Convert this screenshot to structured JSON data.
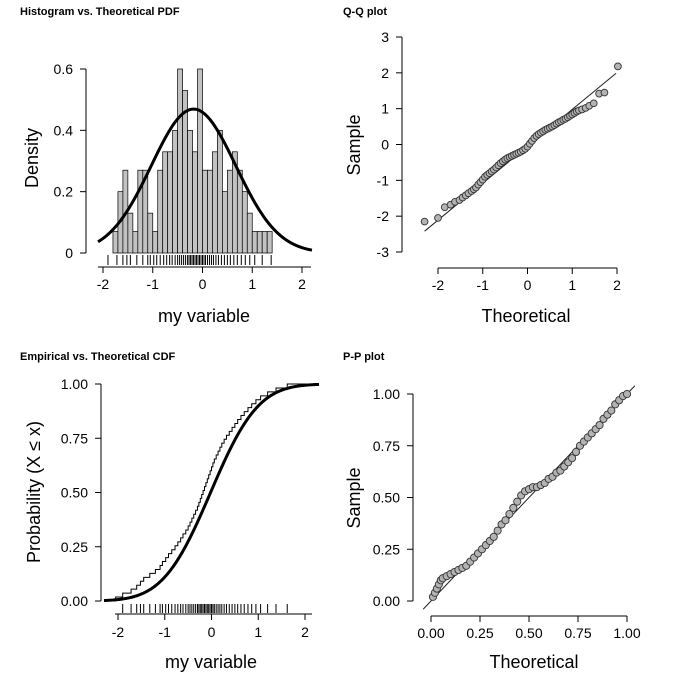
{
  "chart_data": [
    {
      "type": "bar",
      "title": "Histogram vs. Theoretical PDF",
      "xlabel": "my variable",
      "ylabel": "Density",
      "xlim": [
        -2.2,
        2.2
      ],
      "ylim": [
        0,
        0.62
      ],
      "xticks": [
        "-2",
        "-1",
        "0",
        "1",
        "2"
      ],
      "yticks": [
        "0",
        "0.2",
        "0.4",
        "0.6"
      ],
      "bin_width": 0.1,
      "bin_starts": [
        -1.8,
        -1.7,
        -1.6,
        -1.5,
        -1.4,
        -1.3,
        -1.2,
        -1.1,
        -1.0,
        -0.9,
        -0.8,
        -0.7,
        -0.6,
        -0.5,
        -0.4,
        -0.3,
        -0.2,
        -0.1,
        0.0,
        0.1,
        0.2,
        0.3,
        0.4,
        0.5,
        0.6,
        0.7,
        0.8,
        0.9,
        1.0,
        1.1,
        1.2,
        1.3
      ],
      "densities": [
        0.07,
        0.2,
        0.27,
        0.13,
        0.07,
        0.27,
        0.27,
        0.13,
        0.07,
        0.27,
        0.33,
        0.33,
        0.4,
        0.6,
        0.53,
        0.4,
        0.33,
        0.6,
        0.27,
        0.27,
        0.33,
        0.4,
        0.2,
        0.27,
        0.33,
        0.27,
        0.2,
        0.13,
        0.07,
        0.07,
        0.07,
        0.07
      ],
      "pdf_curve": {
        "mean": -0.18,
        "sd": 0.85
      },
      "rug": [
        -1.9,
        -1.72,
        -1.6,
        -1.52,
        -1.45,
        -1.32,
        -1.2,
        -1.1,
        -1.05,
        -0.98,
        -0.92,
        -0.85,
        -0.78,
        -0.72,
        -0.66,
        -0.61,
        -0.55,
        -0.5,
        -0.46,
        -0.42,
        -0.38,
        -0.34,
        -0.3,
        -0.27,
        -0.24,
        -0.21,
        -0.18,
        -0.15,
        -0.12,
        -0.09,
        -0.06,
        -0.03,
        0.0,
        0.03,
        0.06,
        0.1,
        0.14,
        0.18,
        0.22,
        0.27,
        0.32,
        0.38,
        0.44,
        0.5,
        0.56,
        0.63,
        0.7,
        0.78,
        0.86,
        0.95,
        1.05,
        1.2,
        1.38
      ]
    },
    {
      "type": "scatter",
      "title": "Q-Q plot",
      "xlabel": "Theoretical",
      "ylabel": "Sample",
      "xlim": [
        -2.5,
        2.5
      ],
      "ylim": [
        -3,
        3
      ],
      "xticks": [
        "-2",
        "-1",
        "0",
        "1",
        "2"
      ],
      "yticks": [
        "3",
        "2",
        "1",
        "0",
        "-1",
        "-2",
        "-3"
      ],
      "reference_line": {
        "intercept": -0.05,
        "slope": 1.03
      },
      "points": [
        [
          -2.3,
          -2.15
        ],
        [
          -2.0,
          -2.05
        ],
        [
          -1.85,
          -1.75
        ],
        [
          -1.72,
          -1.68
        ],
        [
          -1.62,
          -1.6
        ],
        [
          -1.52,
          -1.55
        ],
        [
          -1.45,
          -1.48
        ],
        [
          -1.38,
          -1.42
        ],
        [
          -1.32,
          -1.36
        ],
        [
          -1.25,
          -1.3
        ],
        [
          -1.2,
          -1.25
        ],
        [
          -1.15,
          -1.2
        ],
        [
          -1.1,
          -1.12
        ],
        [
          -1.05,
          -1.05
        ],
        [
          -1.0,
          -0.98
        ],
        [
          -0.95,
          -0.9
        ],
        [
          -0.9,
          -0.85
        ],
        [
          -0.85,
          -0.8
        ],
        [
          -0.8,
          -0.75
        ],
        [
          -0.75,
          -0.7
        ],
        [
          -0.7,
          -0.64
        ],
        [
          -0.65,
          -0.58
        ],
        [
          -0.6,
          -0.52
        ],
        [
          -0.55,
          -0.47
        ],
        [
          -0.5,
          -0.42
        ],
        [
          -0.45,
          -0.38
        ],
        [
          -0.4,
          -0.35
        ],
        [
          -0.35,
          -0.32
        ],
        [
          -0.3,
          -0.29
        ],
        [
          -0.25,
          -0.26
        ],
        [
          -0.2,
          -0.23
        ],
        [
          -0.15,
          -0.2
        ],
        [
          -0.1,
          -0.16
        ],
        [
          -0.05,
          -0.12
        ],
        [
          0.0,
          -0.06
        ],
        [
          0.05,
          0.02
        ],
        [
          0.1,
          0.1
        ],
        [
          0.15,
          0.18
        ],
        [
          0.2,
          0.24
        ],
        [
          0.25,
          0.29
        ],
        [
          0.3,
          0.33
        ],
        [
          0.35,
          0.37
        ],
        [
          0.4,
          0.41
        ],
        [
          0.45,
          0.44
        ],
        [
          0.5,
          0.47
        ],
        [
          0.55,
          0.5
        ],
        [
          0.6,
          0.54
        ],
        [
          0.65,
          0.58
        ],
        [
          0.7,
          0.62
        ],
        [
          0.75,
          0.65
        ],
        [
          0.8,
          0.69
        ],
        [
          0.85,
          0.72
        ],
        [
          0.9,
          0.76
        ],
        [
          0.95,
          0.8
        ],
        [
          1.0,
          0.84
        ],
        [
          1.05,
          0.88
        ],
        [
          1.1,
          0.92
        ],
        [
          1.15,
          0.95
        ],
        [
          1.22,
          0.98
        ],
        [
          1.3,
          1.02
        ],
        [
          1.38,
          1.08
        ],
        [
          1.48,
          1.15
        ],
        [
          1.6,
          1.42
        ],
        [
          1.72,
          1.45
        ],
        [
          2.02,
          2.18
        ]
      ]
    },
    {
      "type": "line",
      "title": "Empirical vs. Theoretical CDF",
      "xlabel": "my variable",
      "ylabel": "Probability (X ≤ x)",
      "xlim": [
        -2.3,
        2.3
      ],
      "ylim": [
        0,
        1
      ],
      "xticks": [
        "-2",
        "-1",
        "0",
        "1",
        "2"
      ],
      "yticks": [
        "1.00",
        "0.75",
        "0.50",
        "0.25",
        "0.00"
      ],
      "cdf_curve": {
        "mean": -0.02,
        "sd": 0.8
      },
      "ecdf_x": [
        -2.05,
        -1.9,
        -1.72,
        -1.6,
        -1.52,
        -1.45,
        -1.32,
        -1.2,
        -1.1,
        -1.05,
        -0.98,
        -0.92,
        -0.85,
        -0.78,
        -0.72,
        -0.66,
        -0.61,
        -0.55,
        -0.5,
        -0.46,
        -0.42,
        -0.38,
        -0.34,
        -0.3,
        -0.27,
        -0.24,
        -0.21,
        -0.18,
        -0.15,
        -0.12,
        -0.09,
        -0.06,
        -0.03,
        0.0,
        0.03,
        0.06,
        0.1,
        0.14,
        0.18,
        0.22,
        0.27,
        0.32,
        0.38,
        0.44,
        0.5,
        0.56,
        0.63,
        0.7,
        0.78,
        0.86,
        0.95,
        1.05,
        1.2,
        1.38,
        1.62
      ],
      "rug": [
        -1.9,
        -1.72,
        -1.6,
        -1.52,
        -1.45,
        -1.32,
        -1.2,
        -1.1,
        -1.05,
        -0.98,
        -0.92,
        -0.85,
        -0.78,
        -0.72,
        -0.66,
        -0.61,
        -0.55,
        -0.5,
        -0.46,
        -0.42,
        -0.38,
        -0.34,
        -0.3,
        -0.27,
        -0.24,
        -0.21,
        -0.18,
        -0.15,
        -0.12,
        -0.09,
        -0.06,
        -0.03,
        0.0,
        0.03,
        0.06,
        0.1,
        0.14,
        0.18,
        0.22,
        0.27,
        0.32,
        0.38,
        0.44,
        0.5,
        0.56,
        0.63,
        0.7,
        0.78,
        0.86,
        0.95,
        1.05,
        1.2,
        1.38,
        1.62
      ]
    },
    {
      "type": "scatter",
      "title": "P-P plot",
      "xlabel": "Theoretical",
      "ylabel": "Sample",
      "xlim": [
        -0.04,
        1.04
      ],
      "ylim": [
        -0.04,
        1.08
      ],
      "xticks": [
        "0.00",
        "0.25",
        "0.50",
        "0.75",
        "1.00"
      ],
      "yticks": [
        "1.00",
        "0.75",
        "0.50",
        "0.25",
        "0.00"
      ],
      "reference_line": {
        "intercept": 0,
        "slope": 1
      },
      "points": [
        [
          0.01,
          0.02
        ],
        [
          0.02,
          0.04
        ],
        [
          0.03,
          0.06
        ],
        [
          0.04,
          0.08
        ],
        [
          0.05,
          0.1
        ],
        [
          0.06,
          0.11
        ],
        [
          0.08,
          0.12
        ],
        [
          0.1,
          0.13
        ],
        [
          0.12,
          0.14
        ],
        [
          0.14,
          0.15
        ],
        [
          0.16,
          0.16
        ],
        [
          0.18,
          0.17
        ],
        [
          0.2,
          0.19
        ],
        [
          0.22,
          0.21
        ],
        [
          0.24,
          0.23
        ],
        [
          0.26,
          0.25
        ],
        [
          0.28,
          0.27
        ],
        [
          0.3,
          0.29
        ],
        [
          0.32,
          0.31
        ],
        [
          0.34,
          0.34
        ],
        [
          0.36,
          0.37
        ],
        [
          0.38,
          0.39
        ],
        [
          0.4,
          0.42
        ],
        [
          0.42,
          0.45
        ],
        [
          0.44,
          0.48
        ],
        [
          0.46,
          0.51
        ],
        [
          0.48,
          0.53
        ],
        [
          0.5,
          0.54
        ],
        [
          0.52,
          0.55
        ],
        [
          0.54,
          0.55
        ],
        [
          0.56,
          0.56
        ],
        [
          0.58,
          0.57
        ],
        [
          0.6,
          0.59
        ],
        [
          0.62,
          0.6
        ],
        [
          0.64,
          0.62
        ],
        [
          0.66,
          0.63
        ],
        [
          0.68,
          0.65
        ],
        [
          0.7,
          0.67
        ],
        [
          0.72,
          0.69
        ],
        [
          0.74,
          0.72
        ],
        [
          0.76,
          0.75
        ],
        [
          0.78,
          0.77
        ],
        [
          0.8,
          0.79
        ],
        [
          0.82,
          0.81
        ],
        [
          0.84,
          0.83
        ],
        [
          0.86,
          0.85
        ],
        [
          0.88,
          0.88
        ],
        [
          0.9,
          0.9
        ],
        [
          0.92,
          0.92
        ],
        [
          0.94,
          0.95
        ],
        [
          0.96,
          0.97
        ],
        [
          0.98,
          0.99
        ],
        [
          1.0,
          1.0
        ]
      ]
    }
  ]
}
